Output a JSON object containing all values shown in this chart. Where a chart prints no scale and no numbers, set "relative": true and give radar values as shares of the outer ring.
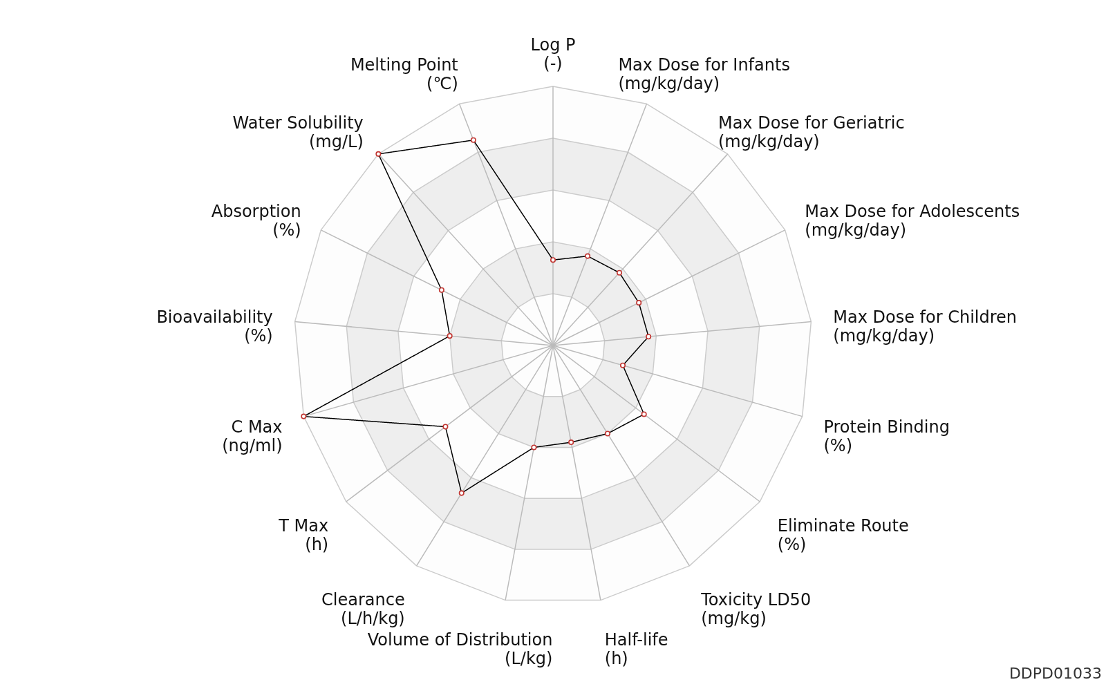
{
  "chart_data": {
    "type": "radar",
    "relative": true,
    "grid": true,
    "marker": "circle",
    "line_style": "solid",
    "categories": [
      "Log P\n(-)",
      "Max Dose for Infants\n(mg/kg/day)",
      "Max Dose for Geriatric\n(mg/kg/day)",
      "Max Dose for Adolescents\n(mg/kg/day)",
      "Max Dose for Children\n(mg/kg/day)",
      "Protein Binding\n(%)",
      "Eliminate Route\n(%)",
      "Toxicity LD50\n(mg/kg)",
      "Half-life\n(h)",
      "Volume of Distribution\n(L/kg)",
      "Clearance\n(L/h/kg)",
      "T Max\n(h)",
      "C Max\n(ng/ml)",
      "Bioavailability\n(%)",
      "Absorption\n(%)",
      "Water Solubility\n(mg/L)",
      "Melting Point\n(℃)"
    ],
    "series": [
      {
        "color": "#000000",
        "colors": [
          "#c23531",
          "#c23531",
          "#c23531",
          "#c23531",
          "#c23531",
          "#c23531",
          "#c23531",
          "#c23531",
          "#c23531",
          "#c23531",
          "#c23531",
          "#c23531",
          "#c23531",
          "#c23531",
          "#c23531",
          "#c23531",
          "#c23531"
        ],
        "values": [
          0.33,
          0.37,
          0.38,
          0.37,
          0.37,
          0.28,
          0.44,
          0.4,
          0.38,
          0.4,
          0.67,
          0.52,
          1.0,
          0.4,
          0.48,
          1.0,
          0.85
        ]
      }
    ],
    "annotations": [
      "DDPD01033"
    ]
  }
}
